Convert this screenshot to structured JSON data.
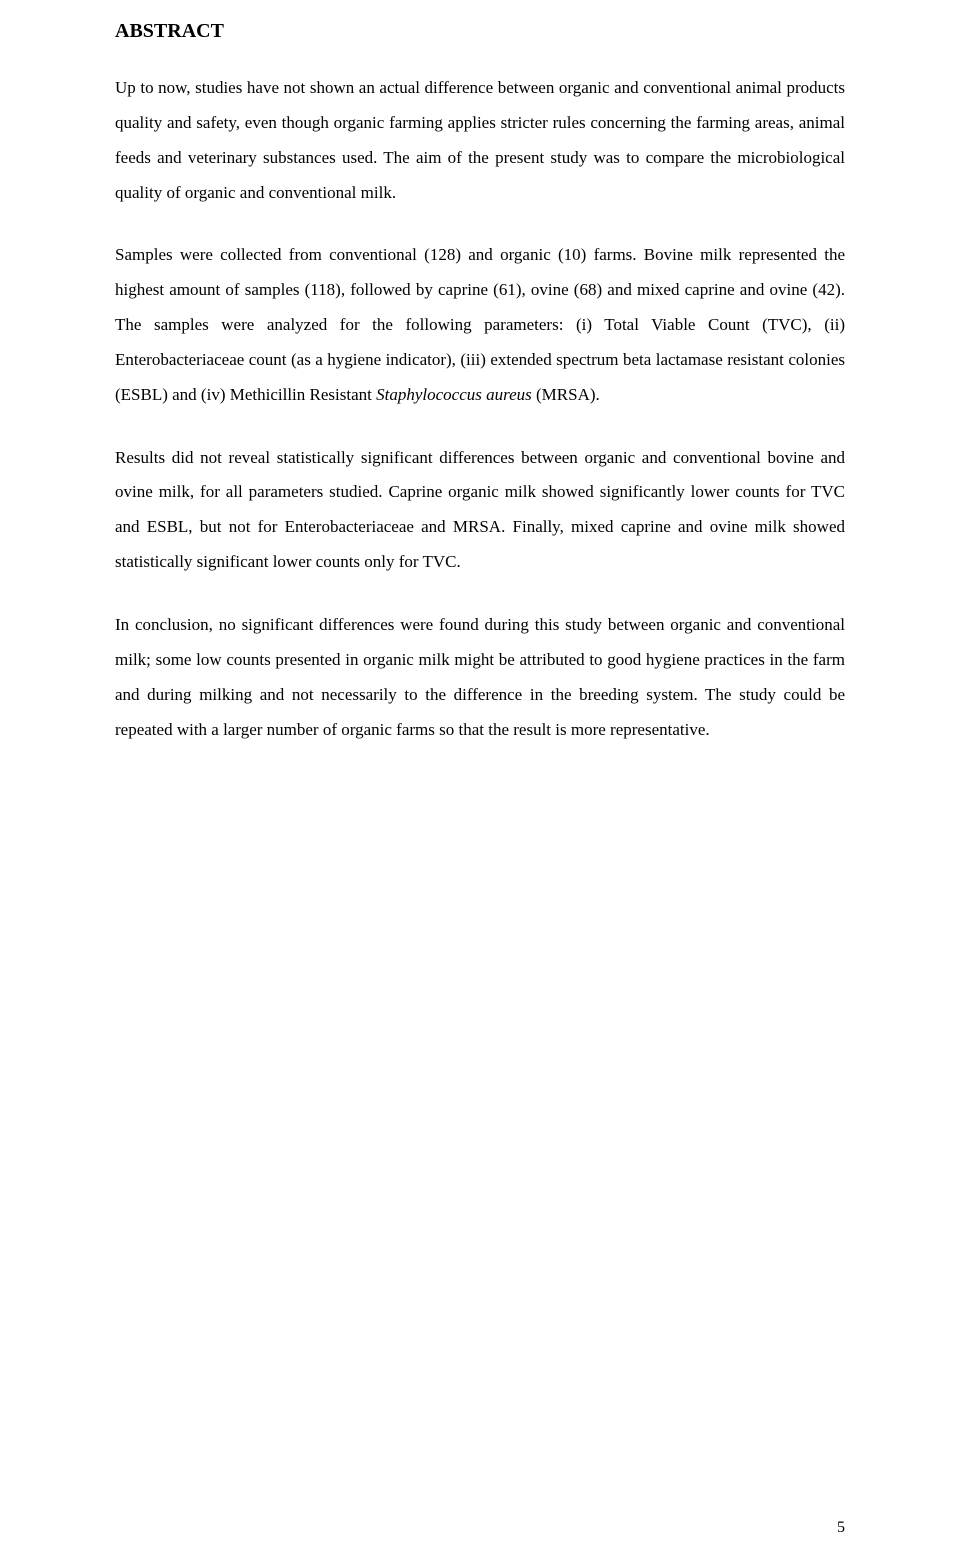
{
  "typography": {
    "font_family": "Times New Roman",
    "title_fontsize_pt": 15,
    "body_fontsize_pt": 13,
    "line_height": 2.05,
    "text_align": "justify",
    "text_color": "#000000",
    "background_color": "#ffffff"
  },
  "title": "ABSTRACT",
  "p1": "Up to now, studies have not shown an actual difference between organic and conventional animal products quality and safety, even though organic farming applies stricter rules concerning the farming areas, animal feeds and veterinary substances used. The aim of the present study was to compare the microbiological quality of organic and conventional milk.",
  "p2_a": "Samples were collected from conventional (128) and organic (10) farms. Bovine milk represented the highest amount of samples (118), followed by caprine (61), ovine (68) and mixed caprine and ovine (42). The samples were analyzed for the following parameters: (i) Total Viable Count (TVC), (ii) Enterobacteriaceae count (as a hygiene indicator), (iii) extended spectrum beta lactamase resistant colonies (ESBL) and (iv) Methicillin Resistant ",
  "p2_italic": "Staphylococcus aureus",
  "p2_b": " (MRSA).",
  "p3": "Results did not reveal statistically significant differences between organic and conventional bovine and ovine milk, for all parameters studied. Caprine organic milk showed significantly lower counts for TVC and ESBL, but not for Enterobacteriaceae and MRSA. Finally, mixed caprine and ovine milk showed statistically significant lower counts only for TVC.",
  "p4": "In conclusion, no significant differences were found during this study between organic and conventional milk; some low counts presented in organic milk might be attributed to good hygiene practices in the farm and during milking and not necessarily to the difference in the breeding system. The study could be repeated with a larger number of organic farms so that the result is more representative.",
  "page_number": "5"
}
